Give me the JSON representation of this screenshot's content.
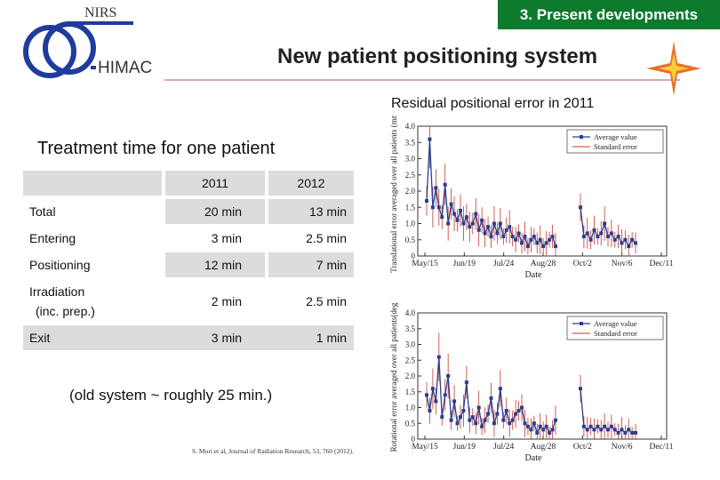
{
  "header": {
    "badge": "3. Present developments",
    "org_top": "NIRS",
    "org_bottom": "HIMAC",
    "title": "New patient positioning system",
    "subtitle": "Residual positional error in 2011"
  },
  "table": {
    "title": "Treatment time for one patient",
    "columns": [
      "2011",
      "2012"
    ],
    "rows": [
      {
        "label": "Total",
        "sublabel": "",
        "v2011": "20 min",
        "v2012": "13 min"
      },
      {
        "label": "Entering",
        "sublabel": "",
        "v2011": "3 min",
        "v2012": "2.5 min"
      },
      {
        "label": "Positioning",
        "sublabel": "",
        "v2011": "12 min",
        "v2012": "7 min"
      },
      {
        "label": "Irradiation",
        "sublabel": "(inc. prep.)",
        "v2011": "2 min",
        "v2012": "2.5 min"
      },
      {
        "label": "Exit",
        "sublabel": "",
        "v2011": "3 min",
        "v2012": "1 min"
      }
    ],
    "note": "(old system ~ roughly 25 min.)"
  },
  "citation": "S. Mori et al, Journal of Radiation Research, 53, 760 (2012).",
  "colors": {
    "badge": "#0d7a2e",
    "series": "#2c3e8f",
    "error": "#c0392b",
    "star": "#e8702a"
  },
  "chart_data": [
    {
      "type": "line",
      "ylabel": "Translational error averaged over all patients (mm)",
      "xlabel": "Date",
      "ylim": [
        0,
        4.0
      ],
      "yticks": [
        "0",
        "0.5",
        "1.0",
        "1.5",
        "2.0",
        "2.5",
        "3.0",
        "3.5",
        "4.0"
      ],
      "xticks": [
        "May/15",
        "Jun/19",
        "Jul/24",
        "Aug/28",
        "Oct/2",
        "Nov/6",
        "Dec/11"
      ],
      "legend": [
        "Average value",
        "Standard error"
      ],
      "series": [
        {
          "name": "Average value",
          "segment": 1,
          "values": [
            1.7,
            3.6,
            1.5,
            2.1,
            1.5,
            1.2,
            2.2,
            1.0,
            1.6,
            1.3,
            1.1,
            1.4,
            1.0,
            1.2,
            0.9,
            1.0,
            1.3,
            0.8,
            1.1,
            0.7,
            0.9,
            0.6,
            1.0,
            0.7,
            1.0,
            0.6,
            0.8,
            0.9,
            0.6,
            0.5,
            0.7,
            0.4,
            0.6,
            0.3,
            0.5,
            0.6,
            0.4,
            0.5,
            0.3,
            0.4,
            0.5,
            0.6,
            0.3
          ]
        },
        {
          "name": "Average value",
          "segment": 2,
          "values": [
            1.5,
            0.6,
            0.7,
            0.5,
            0.8,
            0.6,
            0.7,
            1.0,
            0.6,
            0.7,
            0.5,
            0.6,
            0.4,
            0.5,
            0.3,
            0.5,
            0.4
          ]
        }
      ]
    },
    {
      "type": "line",
      "ylabel": "Rotational error averaged over all patients(deg)",
      "xlabel": "Date",
      "ylim": [
        0,
        4.0
      ],
      "yticks": [
        "0",
        "0.5",
        "1.0",
        "1.5",
        "2.0",
        "2.5",
        "3.0",
        "3.5",
        "4.0"
      ],
      "xticks": [
        "May/15",
        "Jun/19",
        "Jul/24",
        "Aug/28",
        "Oct/2",
        "Nov/6",
        "Dec/11"
      ],
      "legend": [
        "Average value",
        "Standard error"
      ],
      "series": [
        {
          "name": "Average value",
          "segment": 1,
          "values": [
            1.4,
            0.9,
            1.6,
            1.2,
            2.6,
            0.7,
            1.4,
            2.0,
            0.6,
            1.2,
            0.5,
            0.7,
            0.9,
            1.8,
            0.6,
            0.7,
            0.5,
            1.0,
            0.4,
            0.6,
            0.8,
            1.3,
            0.5,
            0.8,
            1.6,
            0.6,
            0.9,
            0.5,
            0.6,
            0.8,
            0.9,
            1.0,
            0.5,
            0.4,
            0.3,
            0.5,
            0.2,
            0.4,
            0.3,
            0.4,
            0.2,
            0.3,
            0.6
          ]
        },
        {
          "name": "Average value",
          "segment": 2,
          "values": [
            1.6,
            0.4,
            0.3,
            0.4,
            0.3,
            0.4,
            0.3,
            0.4,
            0.3,
            0.4,
            0.3,
            0.2,
            0.3,
            0.2,
            0.3,
            0.2,
            0.2
          ]
        }
      ]
    }
  ]
}
